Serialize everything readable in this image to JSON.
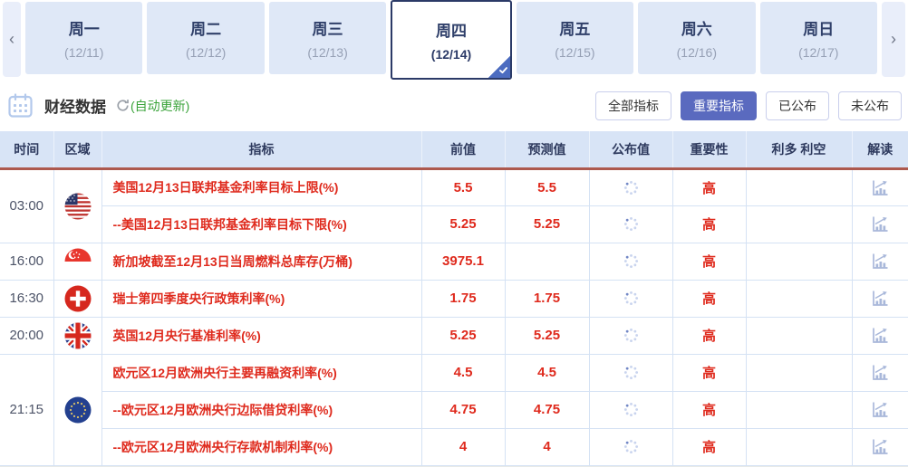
{
  "tabs": {
    "prev_arrow": "‹",
    "next_arrow": "›",
    "items": [
      {
        "day": "周一",
        "date": "(12/11)",
        "selected": false
      },
      {
        "day": "周二",
        "date": "(12/12)",
        "selected": false
      },
      {
        "day": "周三",
        "date": "(12/13)",
        "selected": false
      },
      {
        "day": "周四",
        "date": "(12/14)",
        "selected": true
      },
      {
        "day": "周五",
        "date": "(12/15)",
        "selected": false
      },
      {
        "day": "周六",
        "date": "(12/16)",
        "selected": false
      },
      {
        "day": "周日",
        "date": "(12/17)",
        "selected": false
      }
    ],
    "selected_check_icon": "check-icon"
  },
  "section": {
    "calendar_icon": "calendar-icon",
    "title": "财经数据",
    "refresh_icon": "refresh-icon",
    "auto_update": "(自动更新)",
    "filters": [
      {
        "label": "全部指标",
        "active": false
      },
      {
        "label": "重要指标",
        "active": true
      },
      {
        "label": "已公布",
        "active": false
      },
      {
        "label": "未公布",
        "active": false
      }
    ]
  },
  "table": {
    "headers": [
      "时间",
      "区域",
      "指标",
      "前值",
      "预测值",
      "公布值",
      "重要性",
      "利多 利空",
      "解读"
    ],
    "groups": [
      {
        "time": "03:00",
        "region_icon": "us-flag",
        "rows": [
          {
            "indicator": "美国12月13日联邦基金利率目标上限(%)",
            "previous": "5.5",
            "forecast": "5.5",
            "published_icon": "spinner-icon",
            "importance": "高",
            "bullish_bearish": "",
            "interpretation_icon": "chart-icon"
          },
          {
            "indicator": "--美国12月13日联邦基金利率目标下限(%)",
            "previous": "5.25",
            "forecast": "5.25",
            "published_icon": "spinner-icon",
            "importance": "高",
            "bullish_bearish": "",
            "interpretation_icon": "chart-icon"
          }
        ]
      },
      {
        "time": "16:00",
        "region_icon": "singapore-flag",
        "rows": [
          {
            "indicator": "新加坡截至12月13日当周燃料总库存(万桶)",
            "previous": "3975.1",
            "forecast": "",
            "published_icon": "spinner-icon",
            "importance": "高",
            "bullish_bearish": "",
            "interpretation_icon": "chart-icon"
          }
        ]
      },
      {
        "time": "16:30",
        "region_icon": "switzerland-flag",
        "rows": [
          {
            "indicator": "瑞士第四季度央行政策利率(%)",
            "previous": "1.75",
            "forecast": "1.75",
            "published_icon": "spinner-icon",
            "importance": "高",
            "bullish_bearish": "",
            "interpretation_icon": "chart-icon"
          }
        ]
      },
      {
        "time": "20:00",
        "region_icon": "uk-flag",
        "rows": [
          {
            "indicator": "英国12月央行基准利率(%)",
            "previous": "5.25",
            "forecast": "5.25",
            "published_icon": "spinner-icon",
            "importance": "高",
            "bullish_bearish": "",
            "interpretation_icon": "chart-icon"
          }
        ]
      },
      {
        "time": "21:15",
        "region_icon": "eu-flag",
        "rows": [
          {
            "indicator": "欧元区12月欧洲央行主要再融资利率(%)",
            "previous": "4.5",
            "forecast": "4.5",
            "published_icon": "spinner-icon",
            "importance": "高",
            "bullish_bearish": "",
            "interpretation_icon": "chart-icon"
          },
          {
            "indicator": "--欧元区12月欧洲央行边际借贷利率(%)",
            "previous": "4.75",
            "forecast": "4.75",
            "published_icon": "spinner-icon",
            "importance": "高",
            "bullish_bearish": "",
            "interpretation_icon": "chart-icon"
          },
          {
            "indicator": "--欧元区12月欧洲央行存款机制利率(%)",
            "previous": "4",
            "forecast": "4",
            "published_icon": "spinner-icon",
            "importance": "高",
            "bullish_bearish": "",
            "interpretation_icon": "chart-icon"
          }
        ]
      }
    ]
  },
  "colors": {
    "accent_red": "#df2a1d",
    "header_underline": "#ad594e",
    "tab_selected_border": "#2b3a67",
    "tab_bg": "#dfe8f7",
    "table_header_bg": "#d8e4f6",
    "active_filter_bg": "#5a6abf",
    "auto_update_green": "#3aa33a"
  }
}
